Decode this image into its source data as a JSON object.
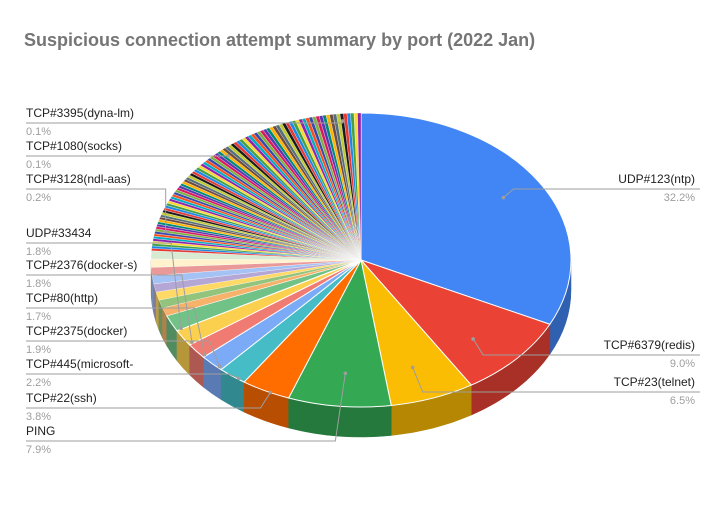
{
  "chart_data": {
    "type": "pie",
    "style": "3d",
    "title": "Suspicious connection attempt summary by port  (2022 Jan)",
    "labeled_slices": [
      {
        "label": "UDP#123(ntp)",
        "pct": "32.2%",
        "value": 32.2,
        "color": "#4285f4"
      },
      {
        "label": "TCP#6379(redis)",
        "pct": "9.0%",
        "value": 9.0,
        "color": "#ea4335"
      },
      {
        "label": "TCP#23(telnet)",
        "pct": "6.5%",
        "value": 6.5,
        "color": "#fbbc04"
      },
      {
        "label": "PING",
        "pct": "7.9%",
        "value": 7.9,
        "color": "#34a853"
      },
      {
        "label": "TCP#22(ssh)",
        "pct": "3.8%",
        "value": 3.8,
        "color": "#ff6d01"
      },
      {
        "label": "TCP#445(microsoft-",
        "pct": "2.2%",
        "value": 2.2,
        "color": "#46bdc6"
      },
      {
        "label": "TCP#2375(docker)",
        "pct": "1.9%",
        "value": 1.9,
        "color": "#7baaf7"
      },
      {
        "label": "TCP#80(http)",
        "pct": "1.7%",
        "value": 1.7,
        "color": "#f07b72"
      },
      {
        "label": "TCP#2376(docker-s)",
        "pct": "1.8%",
        "value": 1.8,
        "color": "#fcd04f"
      },
      {
        "label": "UDP#33434",
        "pct": "1.8%",
        "value": 1.8,
        "color": "#71c287"
      },
      {
        "label": "TCP#3128(ndl-aas)",
        "pct": "0.2%",
        "value": 0.2,
        "color": "#1a1a1a"
      },
      {
        "label": "TCP#1080(socks)",
        "pct": "0.1%",
        "value": 0.1,
        "color": "#c0ca33"
      },
      {
        "label": "TCP#3395(dyna-lm)",
        "pct": "0.1%",
        "value": 0.1,
        "color": "#8e24aa"
      }
    ]
  }
}
